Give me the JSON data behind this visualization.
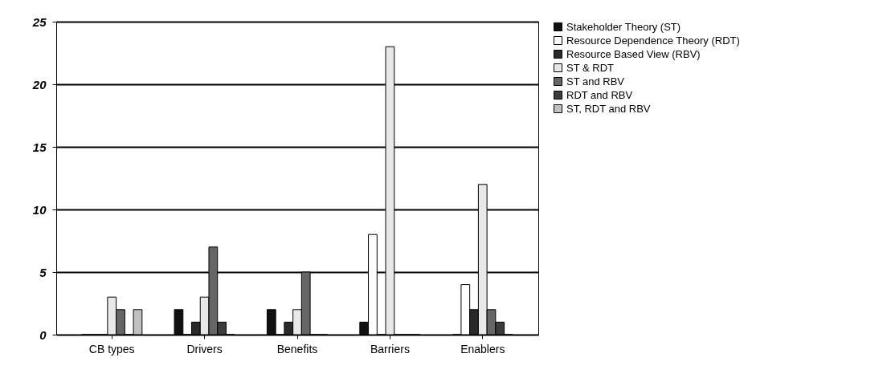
{
  "chart_data": {
    "type": "bar",
    "categories": [
      "CB types",
      "Drivers",
      "Benefits",
      "Barriers",
      "Enablers"
    ],
    "series": [
      {
        "name": "Stakeholder Theory (ST)",
        "color": "#111111",
        "values": [
          0,
          2,
          2,
          1,
          0
        ]
      },
      {
        "name": "Resource Dependence Theory (RDT)",
        "color": "#ffffff",
        "values": [
          0,
          0,
          0,
          8,
          4
        ]
      },
      {
        "name": "Resource Based View (RBV)",
        "color": "#2a2a2a",
        "values": [
          0,
          1,
          1,
          0,
          2
        ]
      },
      {
        "name": "ST & RDT",
        "color": "#e8e8e8",
        "values": [
          3,
          3,
          2,
          23,
          12
        ]
      },
      {
        "name": "ST and RBV",
        "color": "#666666",
        "values": [
          2,
          7,
          5,
          0,
          2
        ]
      },
      {
        "name": "RDT and RBV",
        "color": "#3c3c3c",
        "values": [
          0,
          1,
          0,
          0,
          1
        ]
      },
      {
        "name": "ST, RDT and RBV",
        "color": "#c0c0c0",
        "values": [
          2,
          0,
          0,
          0,
          0
        ]
      }
    ],
    "ylim": [
      0,
      25
    ],
    "yticks": [
      0,
      5,
      10,
      15,
      20,
      25
    ],
    "grid": "y",
    "legend": "right"
  }
}
